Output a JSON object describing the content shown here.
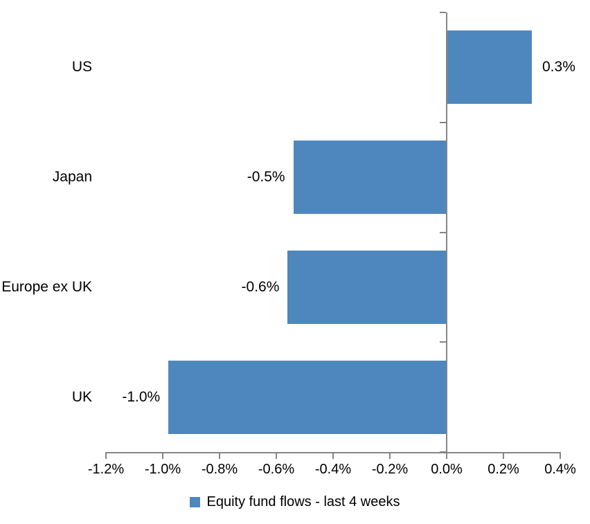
{
  "chart_data": {
    "type": "bar",
    "orientation": "horizontal",
    "title": "",
    "categories": [
      "US",
      "Japan",
      "Europe ex UK",
      "UK"
    ],
    "values": [
      0.3,
      -0.54,
      -0.56,
      -0.98
    ],
    "data_labels": [
      "0.3%",
      "-0.5%",
      "-0.6%",
      "-1.0%"
    ],
    "series": [
      {
        "name": "Equity fund flows - last 4 weeks",
        "values": [
          0.3,
          -0.54,
          -0.56,
          -0.98
        ]
      }
    ],
    "legend": "Equity fund flows - last 4 weeks",
    "legend_position": "bottom",
    "x_tick_labels": [
      "-1.2%",
      "-1.0%",
      "-0.8%",
      "-0.6%",
      "-0.4%",
      "-0.2%",
      "0.0%",
      "0.2%",
      "0.4%"
    ],
    "x_tick_values": [
      -1.2,
      -1.0,
      -0.8,
      -0.6,
      -0.4,
      -0.2,
      0.0,
      0.2,
      0.4
    ],
    "xlim": [
      -1.2,
      0.4
    ],
    "xlabel": "",
    "ylabel": "",
    "grid": false,
    "bar_color": "#4E87BD",
    "axis_color": "#858585",
    "text_color": "#000000"
  }
}
